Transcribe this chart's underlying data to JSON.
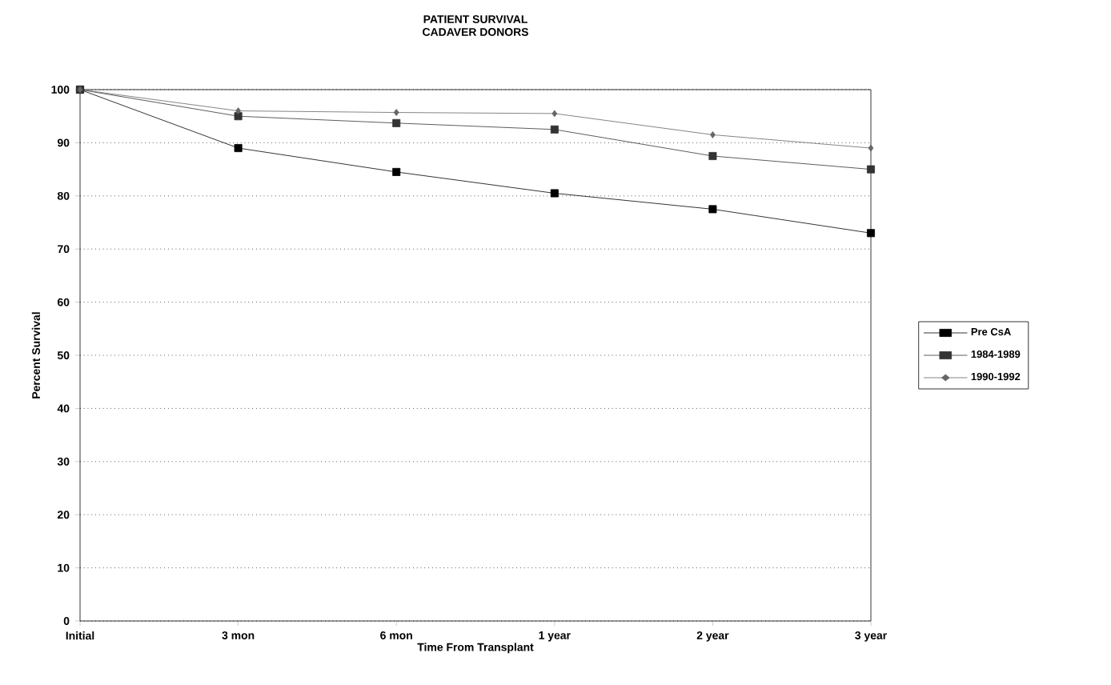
{
  "chart_data": {
    "type": "line",
    "title": "PATIENT SURVIVAL\nCADAVER DONORS",
    "xlabel": "Time From Transplant",
    "ylabel": "Percent Survival",
    "categories": [
      "Initial",
      "3 mon",
      "6 mon",
      "1 year",
      "2 year",
      "3 year"
    ],
    "series": [
      {
        "name": "Pre CsA",
        "color": "#000000",
        "marker": "square",
        "values": [
          100,
          89,
          84.5,
          80.5,
          77.5,
          73
        ]
      },
      {
        "name": "1984-1989",
        "color": "#333333",
        "marker": "square",
        "values": [
          100,
          95,
          93.7,
          92.5,
          87.5,
          85
        ]
      },
      {
        "name": "1990-1992",
        "color": "#666666",
        "marker": "diamond",
        "values": [
          100,
          96,
          95.7,
          95.5,
          91.5,
          89
        ]
      }
    ],
    "ylim": [
      0,
      100
    ],
    "yticks": [
      0,
      10,
      20,
      30,
      40,
      50,
      60,
      70,
      80,
      90,
      100
    ],
    "grid": "y",
    "legend": "right",
    "line_style": "solid"
  }
}
